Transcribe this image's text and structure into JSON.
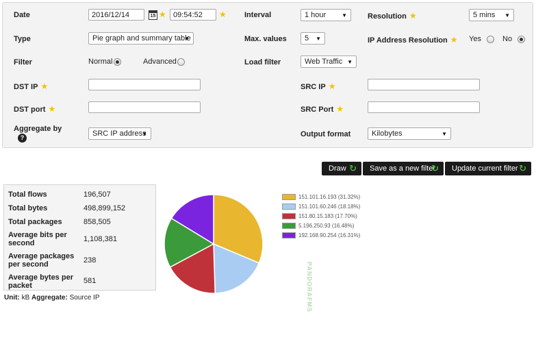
{
  "form": {
    "date": {
      "label": "Date",
      "value": "2016/12/14",
      "time": "09:54:52",
      "calendar_day": "15"
    },
    "interval": {
      "label": "Interval",
      "value": "1 hour"
    },
    "resolution": {
      "label": "Resolution",
      "value": "5 mins"
    },
    "type": {
      "label": "Type",
      "value": "Pie graph and summary table"
    },
    "max_values": {
      "label": "Max. values",
      "value": "5"
    },
    "ip_resolution": {
      "label": "IP Address Resolution",
      "yes": "Yes",
      "no": "No",
      "selected": "No"
    },
    "filter": {
      "label": "Filter",
      "normal": "Normal",
      "advanced": "Advanced",
      "selected": "Normal"
    },
    "load_filter": {
      "label": "Load filter",
      "value": "Web Traffic"
    },
    "dst_ip": {
      "label": "DST IP",
      "value": ""
    },
    "src_ip": {
      "label": "SRC IP",
      "value": ""
    },
    "dst_port": {
      "label": "DST port",
      "value": ""
    },
    "src_port": {
      "label": "SRC Port",
      "value": ""
    },
    "aggregate": {
      "label": "Aggregate by",
      "value": "SRC IP address",
      "help": "?"
    },
    "output_format": {
      "label": "Output format",
      "value": "Kilobytes"
    }
  },
  "buttons": {
    "draw": "Draw",
    "save_filter": "Save as a new filter",
    "update_filter": "Update current filter"
  },
  "summary": [
    {
      "key": "Total flows",
      "value": "196,507"
    },
    {
      "key": "Total bytes",
      "value": "498,899,152"
    },
    {
      "key": "Total packages",
      "value": "858,505"
    },
    {
      "key": "Average bits per second",
      "value": "1,108,381"
    },
    {
      "key": "Average packages per second",
      "value": "238"
    },
    {
      "key": "Average bytes per packet",
      "value": "581"
    }
  ],
  "chart_data": {
    "type": "pie",
    "labels": [
      "151.101.16.193",
      "151.101.60.246",
      "151.80.15.183",
      "5.196.250.93",
      "192.168.90.254"
    ],
    "values": [
      31.32,
      18.18,
      17.7,
      16.48,
      16.31
    ],
    "legend_texts": [
      "151.101.16.193 (31.32%)",
      "151.101.60.246 (18.18%)",
      "151.80.15.183 (17.70%)",
      "5.196.250.93 (16.48%)",
      "192.168.90.254 (16.31%)"
    ],
    "colors": [
      "#e8b62f",
      "#a9cdf2",
      "#c0323a",
      "#3b9a3a",
      "#7a24e0"
    ],
    "legend_position": "right"
  },
  "watermark": "PANDORAFMS",
  "footer": {
    "unit_label": "Unit:",
    "unit_value": "kB",
    "aggregate_label": "Aggregate:",
    "aggregate_value": "Source IP"
  }
}
